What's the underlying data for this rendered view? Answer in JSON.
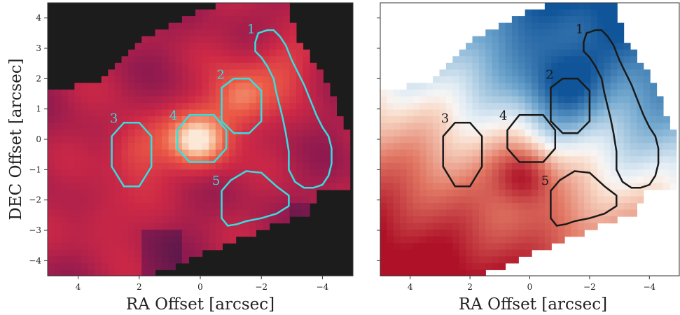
{
  "chart_data": [
    {
      "type": "heatmap",
      "panel": "left",
      "xlabel": "RA Offset [arcsec]",
      "ylabel": "DEC Offset [arcsec]",
      "xlim": [
        5,
        -5
      ],
      "ylim": [
        -4.5,
        4.5
      ],
      "xticks": [
        4,
        2,
        0,
        -2,
        -4
      ],
      "xtick_labels": [
        "4",
        "2",
        "0",
        "−2",
        "−4"
      ],
      "yticks": [
        -4,
        -3,
        -2,
        -1,
        0,
        1,
        2,
        3,
        4
      ],
      "ytick_labels": [
        "−4",
        "−3",
        "−2",
        "−1",
        "0",
        "1",
        "2",
        "3",
        "4"
      ],
      "colormap": "rocket",
      "background_color": "#1c1c1c",
      "contour_color": "#33e0e0",
      "emission_peaks": [
        {
          "x": 0.0,
          "y": -0.1,
          "intensity": 1.0
        },
        {
          "x": -1.3,
          "y": 1.3,
          "intensity": 0.8
        },
        {
          "x": 2.1,
          "y": -0.3,
          "intensity": 0.6
        },
        {
          "x": 3.2,
          "y": -2.6,
          "intensity": 0.35
        },
        {
          "x": -2.6,
          "y": 2.6,
          "intensity": 0.45
        }
      ],
      "regions": [
        {
          "label": "1",
          "label_pos": [
            -1.8,
            3.5
          ],
          "points": [
            [
              -1.8,
              3.2
            ],
            [
              -1.9,
              3.5
            ],
            [
              -2.2,
              3.6
            ],
            [
              -2.4,
              3.6
            ],
            [
              -2.6,
              3.4
            ],
            [
              -2.8,
              3.1
            ],
            [
              -3.0,
              2.6
            ],
            [
              -3.2,
              2.2
            ],
            [
              -3.4,
              1.8
            ],
            [
              -3.6,
              1.3
            ],
            [
              -3.8,
              0.8
            ],
            [
              -4.0,
              0.4
            ],
            [
              -4.2,
              0.1
            ],
            [
              -4.3,
              -0.3
            ],
            [
              -4.3,
              -0.8
            ],
            [
              -4.2,
              -1.2
            ],
            [
              -4.0,
              -1.5
            ],
            [
              -3.7,
              -1.6
            ],
            [
              -3.4,
              -1.6
            ],
            [
              -3.1,
              -1.4
            ],
            [
              -2.9,
              -1.0
            ],
            [
              -2.9,
              -0.4
            ],
            [
              -2.8,
              0.2
            ],
            [
              -2.7,
              0.7
            ],
            [
              -2.6,
              1.1
            ],
            [
              -2.5,
              1.5
            ],
            [
              -2.4,
              2.0
            ],
            [
              -2.2,
              2.4
            ],
            [
              -2.0,
              2.7
            ],
            [
              -1.8,
              2.9
            ]
          ]
        },
        {
          "label": "2",
          "label_pos": [
            -0.8,
            2.0
          ],
          "points": [
            [
              -0.7,
              1.7
            ],
            [
              -1.1,
              2.0
            ],
            [
              -1.6,
              2.0
            ],
            [
              -2.0,
              1.6
            ],
            [
              -2.0,
              0.6
            ],
            [
              -1.6,
              0.2
            ],
            [
              -1.1,
              0.2
            ],
            [
              -0.7,
              0.6
            ]
          ]
        },
        {
          "label": "3",
          "label_pos": [
            2.7,
            0.55
          ],
          "points": [
            [
              2.9,
              0.1
            ],
            [
              2.5,
              0.55
            ],
            [
              2.0,
              0.55
            ],
            [
              1.6,
              0.1
            ],
            [
              1.6,
              -0.9
            ],
            [
              2.0,
              -1.55
            ],
            [
              2.5,
              -1.55
            ],
            [
              2.9,
              -0.9
            ]
          ]
        },
        {
          "label": "4",
          "label_pos": [
            0.75,
            0.65
          ],
          "points": [
            [
              0.75,
              0.3
            ],
            [
              0.35,
              0.8
            ],
            [
              -0.45,
              0.8
            ],
            [
              -0.85,
              0.3
            ],
            [
              -0.85,
              -0.3
            ],
            [
              -0.45,
              -0.75
            ],
            [
              0.35,
              -0.75
            ],
            [
              0.75,
              -0.3
            ]
          ]
        },
        {
          "label": "5",
          "label_pos": [
            -0.65,
            -1.5
          ],
          "points": [
            [
              -0.7,
              -1.7
            ],
            [
              -1.0,
              -1.35
            ],
            [
              -1.5,
              -1.05
            ],
            [
              -2.0,
              -1.1
            ],
            [
              -2.5,
              -1.55
            ],
            [
              -2.9,
              -1.85
            ],
            [
              -2.9,
              -2.2
            ],
            [
              -2.5,
              -2.45
            ],
            [
              -2.0,
              -2.6
            ],
            [
              -1.5,
              -2.7
            ],
            [
              -1.2,
              -2.8
            ],
            [
              -0.9,
              -2.85
            ],
            [
              -0.7,
              -2.6
            ],
            [
              -0.7,
              -2.2
            ]
          ]
        }
      ],
      "grid": false
    },
    {
      "type": "heatmap",
      "panel": "right",
      "xlabel": "RA Offset [arcsec]",
      "ylabel": "",
      "xlim": [
        5,
        -5
      ],
      "ylim": [
        -4.5,
        4.5
      ],
      "xticks": [
        4,
        2,
        0,
        -2,
        -4
      ],
      "xtick_labels": [
        "4",
        "2",
        "0",
        "−2",
        "−4"
      ],
      "yticks": [
        -4,
        -3,
        -2,
        -1,
        0,
        1,
        2,
        3,
        4
      ],
      "colormap": "RdBu_r",
      "background_color": "#ffffff",
      "contour_color": "#1a1a1a",
      "velocity_structure": {
        "blue_peak": [
          -1.0,
          1.8
        ],
        "red_peak": [
          0.2,
          -1.2
        ],
        "zero_line_angle_deg": 20
      },
      "regions": [
        {
          "label": "1",
          "label_pos": [
            -1.8,
            3.5
          ]
        },
        {
          "label": "2",
          "label_pos": [
            -0.8,
            2.0
          ]
        },
        {
          "label": "3",
          "label_pos": [
            2.7,
            0.55
          ]
        },
        {
          "label": "4",
          "label_pos": [
            0.75,
            0.65
          ]
        },
        {
          "label": "5",
          "label_pos": [
            -0.65,
            -1.5
          ]
        }
      ],
      "grid": false
    }
  ]
}
